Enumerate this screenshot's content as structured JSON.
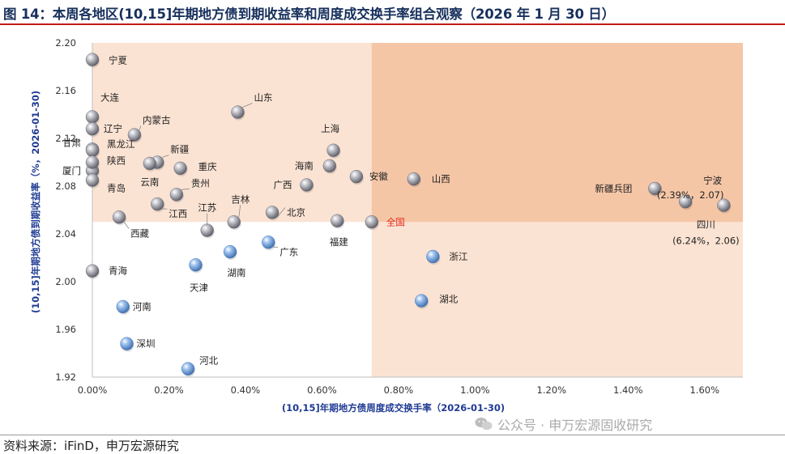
{
  "title": "图 14：本周各地区(10,15]年期地方债到期收益率和周度成交换手率组合观察（2026 年 1 月 30 日）",
  "source": "资料来源：iFinD，申万宏源研究",
  "watermark": "公众号 · 申万宏源固收研究",
  "colors": {
    "title": "#17305c",
    "title_rule": "#c21a1a",
    "quadrant_light": "#fbe3d3",
    "quadrant_dark": "#f5c6a6",
    "bubble_gray": "#8e8e98",
    "bubble_blue": "#6e9ed6",
    "highlight_label": "#e8281e",
    "axis_title": "#1f3a93"
  },
  "chart_data": {
    "type": "scatter",
    "xlabel": "(10,15]年期地方债周度成交换手率（2026-01-30)",
    "ylabel": "(10,15]年期地方债到期收益率（%，2026-01-30)",
    "xlim": [
      0,
      1.7
    ],
    "ylim": [
      1.92,
      2.2
    ],
    "x_unit": "%",
    "xticks": [
      "0.00%",
      "0.20%",
      "0.40%",
      "0.60%",
      "0.80%",
      "1.00%",
      "1.20%",
      "1.40%",
      "1.60%"
    ],
    "yticks": [
      "1.92",
      "1.96",
      "2.00",
      "2.04",
      "2.08",
      "2.12",
      "2.16",
      "2.20"
    ],
    "reference": {
      "name": "全国",
      "x": 0.73,
      "y": 2.05
    },
    "quadrants": "shaded above 全国 yield (light) and above yield with higher turnover (dark)",
    "grid": false,
    "points": [
      {
        "name": "宁夏",
        "x": 0.0,
        "y": 2.186
      },
      {
        "name": "大连",
        "x": 0.0,
        "y": 2.138
      },
      {
        "name": "辽宁",
        "x": 0.0,
        "y": 2.128
      },
      {
        "name": "甘肃",
        "x": 0.0,
        "y": 2.111
      },
      {
        "name": "黑龙江",
        "x": 0.0,
        "y": 2.11
      },
      {
        "name": "厦门",
        "x": 0.0,
        "y": 2.093
      },
      {
        "name": "陕西",
        "x": 0.0,
        "y": 2.1
      },
      {
        "name": "青岛",
        "x": 0.0,
        "y": 2.085
      },
      {
        "name": "青海",
        "x": 0.0,
        "y": 2.009
      },
      {
        "name": "山东",
        "x": 0.38,
        "y": 2.142
      },
      {
        "name": "内蒙古",
        "x": 0.11,
        "y": 2.123
      },
      {
        "name": "新疆",
        "x": 0.17,
        "y": 2.1
      },
      {
        "name": "云南",
        "x": 0.15,
        "y": 2.099
      },
      {
        "name": "重庆",
        "x": 0.23,
        "y": 2.095
      },
      {
        "name": "贵州",
        "x": 0.22,
        "y": 2.073
      },
      {
        "name": "江西",
        "x": 0.17,
        "y": 2.065
      },
      {
        "name": "西藏",
        "x": 0.07,
        "y": 2.054
      },
      {
        "name": "江苏",
        "x": 0.3,
        "y": 2.043
      },
      {
        "name": "吉林",
        "x": 0.37,
        "y": 2.05
      },
      {
        "name": "北京",
        "x": 0.47,
        "y": 2.058
      },
      {
        "name": "上海",
        "x": 0.63,
        "y": 2.11
      },
      {
        "name": "海南",
        "x": 0.62,
        "y": 2.097
      },
      {
        "name": "安徽",
        "x": 0.69,
        "y": 2.088
      },
      {
        "name": "广西",
        "x": 0.56,
        "y": 2.081
      },
      {
        "name": "福建",
        "x": 0.64,
        "y": 2.051
      },
      {
        "name": "全国",
        "x": 0.73,
        "y": 2.05,
        "highlight": true
      },
      {
        "name": "山西",
        "x": 0.84,
        "y": 2.086
      },
      {
        "name": "宁波",
        "x": 1.55,
        "y": 2.067,
        "annotation": "(2.39%，2.07)"
      },
      {
        "name": "新疆兵团",
        "x": 1.47,
        "y": 2.078
      },
      {
        "name": "四川",
        "x": 1.65,
        "y": 2.064,
        "annotation": "(6.24%，2.06)"
      },
      {
        "name": "广东",
        "x": 0.46,
        "y": 2.033,
        "color": "blue"
      },
      {
        "name": "湖南",
        "x": 0.36,
        "y": 2.025,
        "color": "blue"
      },
      {
        "name": "天津",
        "x": 0.27,
        "y": 2.014,
        "color": "blue"
      },
      {
        "name": "浙江",
        "x": 0.89,
        "y": 2.021,
        "color": "blue"
      },
      {
        "name": "湖北",
        "x": 0.86,
        "y": 1.984,
        "color": "blue"
      },
      {
        "name": "河南",
        "x": 0.08,
        "y": 1.979,
        "color": "blue"
      },
      {
        "name": "深圳",
        "x": 0.09,
        "y": 1.948,
        "color": "blue"
      },
      {
        "name": "河北",
        "x": 0.25,
        "y": 1.927,
        "color": "blue"
      }
    ]
  }
}
